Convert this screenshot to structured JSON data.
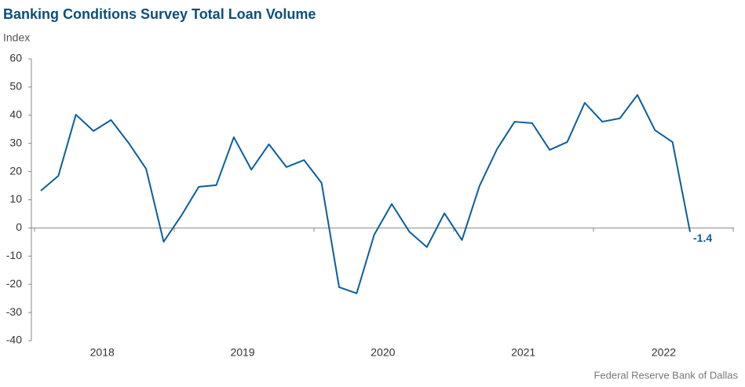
{
  "chart_data": {
    "type": "line",
    "title": "Banking Conditions Survey Total Loan Volume",
    "y_label": "Index",
    "source": "Federal Reserve Bank of Dallas",
    "categories": [
      null,
      null,
      null,
      null,
      "2018",
      null,
      null,
      null,
      null,
      null,
      null,
      null,
      "2019",
      null,
      null,
      null,
      null,
      null,
      null,
      null,
      "2020",
      null,
      null,
      null,
      null,
      null,
      null,
      null,
      "2021",
      null,
      null,
      null,
      null,
      null,
      null,
      null,
      "2022",
      null
    ],
    "values": [
      13.2,
      18.5,
      40.2,
      34.4,
      38.3,
      30.2,
      21,
      -4.9,
      4.3,
      14.6,
      15.2,
      32.2,
      20.7,
      29.7,
      21.6,
      24.1,
      16,
      -21,
      -23.2,
      -2.4,
      8.5,
      -1.3,
      -6.8,
      5.2,
      -4.3,
      14.9,
      28,
      37.7,
      37.2,
      27.7,
      30.5,
      44.4,
      37.7,
      38.9,
      47.2,
      34.7,
      30.5,
      -1.4
    ],
    "color": "#0a5f9e",
    "ylim": [
      -40,
      60
    ],
    "yticks": [
      -40,
      -30,
      -20,
      -10,
      0,
      10,
      20,
      30,
      40,
      50,
      60
    ],
    "grid": false
  }
}
